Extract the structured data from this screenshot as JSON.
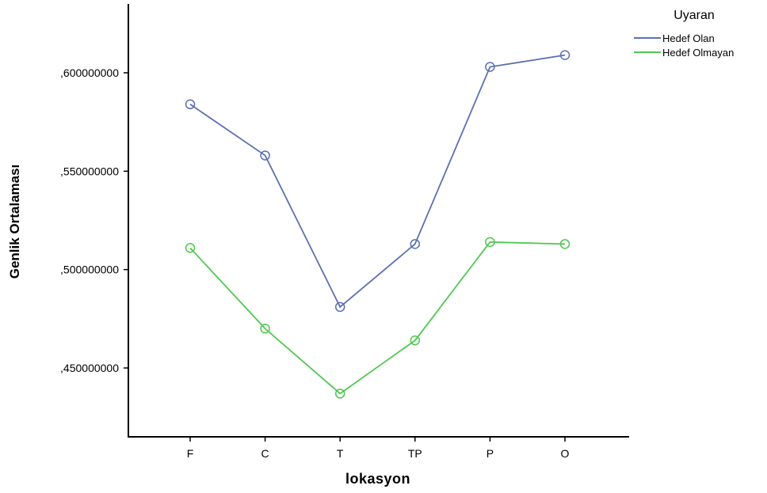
{
  "chart_data": {
    "type": "line",
    "title": "",
    "xlabel": "lokasyon",
    "ylabel": "Genlik Ortalaması",
    "categories": [
      "F",
      "C",
      "T",
      "TP",
      "P",
      "O"
    ],
    "y_ticks": [
      0.45,
      0.5,
      0.55,
      0.6
    ],
    "y_tick_labels": [
      ",450000000",
      ",500000000",
      ",550000000",
      ",600000000"
    ],
    "ylim": [
      0.4,
      0.635
    ],
    "grid": false,
    "marker": "open-circle",
    "legend": {
      "title": "Uyaran",
      "position": "top-right"
    },
    "series": [
      {
        "name": "Hedef Olan",
        "color": "#5b6fb5",
        "values": [
          0.584,
          0.558,
          0.481,
          0.513,
          0.603,
          0.609
        ]
      },
      {
        "name": "Hedef Olmayan",
        "color": "#4fc84f",
        "values": [
          0.511,
          0.47,
          0.437,
          0.464,
          0.514,
          0.513
        ]
      }
    ]
  }
}
